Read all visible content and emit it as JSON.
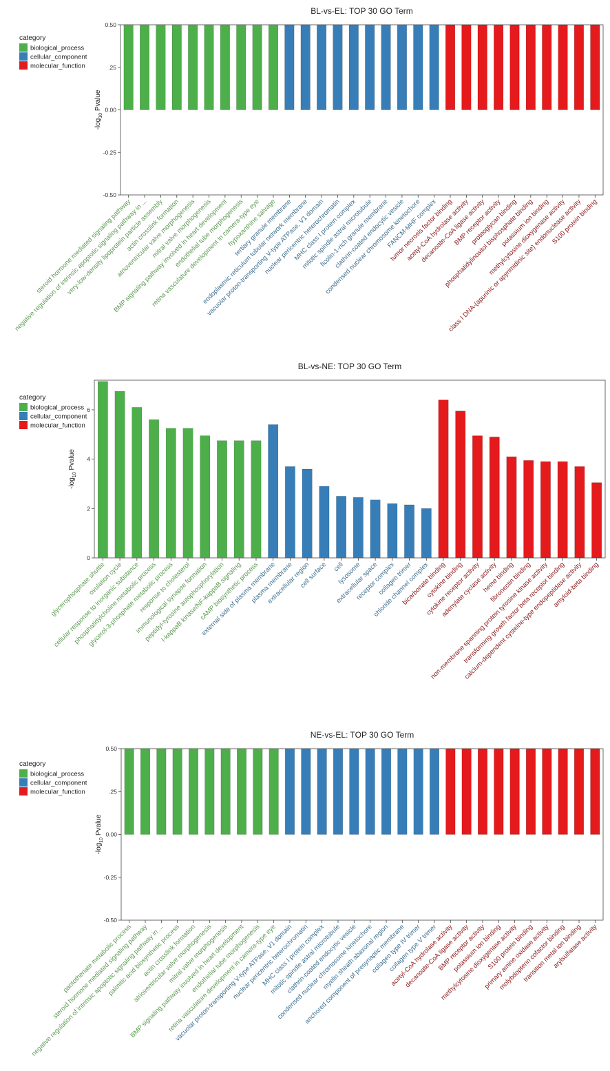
{
  "legend": {
    "title": "category",
    "items": [
      {
        "key": "bp",
        "label": "biological_process",
        "color": "#4DAF4A"
      },
      {
        "key": "cc",
        "label": "cellular_component",
        "color": "#377EB8"
      },
      {
        "key": "mf",
        "label": "molecular_function",
        "color": "#E41A1C"
      }
    ]
  },
  "label_colors": {
    "bp": "#5A9A50",
    "cc": "#3E6F8E",
    "mf": "#8B1A1A"
  },
  "ylabel": {
    "prefix": "-log",
    "sub": "10",
    "suffix": " Pvalue"
  },
  "chart_data": [
    {
      "type": "bar",
      "title": "BL-vs-EL: TOP 30 GO Term",
      "ylim": [
        -0.5,
        0.5
      ],
      "yticks": [
        -0.5,
        -0.25,
        0,
        0.25,
        0.5
      ],
      "ytick_labels": [
        "-0.50",
        "-0.25",
        "0.00",
        ".25",
        "0.50"
      ],
      "series": [
        {
          "name": "-log10 Pvalue",
          "values": [
            0.5,
            0.5,
            0.5,
            0.5,
            0.5,
            0.5,
            0.5,
            0.5,
            0.5,
            0.5,
            0.5,
            0.5,
            0.5,
            0.5,
            0.5,
            0.5,
            0.5,
            0.5,
            0.5,
            0.5,
            0.5,
            0.5,
            0.5,
            0.5,
            0.5,
            0.5,
            0.5,
            0.5,
            0.5,
            0.5
          ]
        }
      ],
      "category_groups": [
        "bp",
        "bp",
        "bp",
        "bp",
        "bp",
        "bp",
        "bp",
        "bp",
        "bp",
        "bp",
        "cc",
        "cc",
        "cc",
        "cc",
        "cc",
        "cc",
        "cc",
        "cc",
        "cc",
        "cc",
        "mf",
        "mf",
        "mf",
        "mf",
        "mf",
        "mf",
        "mf",
        "mf",
        "mf",
        "mf"
      ],
      "categories": [
        "steroid hormone mediated signaling pathway",
        "negative regulation of intrinsic apoptotic signaling pathway in ...",
        "very-low-density lipoprotein particle assembly",
        "actin crosslink formation",
        "atrioventricular valve morphogenesis",
        "mitral valve morphogenesis",
        "BMP signaling pathway involved in heart development",
        "endothelial tube morphogenesis",
        "retina vasculature development in camera-type eye",
        "hypoxanthine salvage",
        "tertiary granule membrane",
        "endoplasmic reticulum tubular network membrane",
        "vacuolar proton-transporting V-type ATPase, V1 domain",
        "nuclear pericentric heterochromatin",
        "MHC class I protein complex",
        "mitotic spindle astral microtubule",
        "ficolin-1-rich granule membrane",
        "clathrin-coated endocytic vesicle",
        "condensed nuclear chromosome kinetochore",
        "FANCM-MHF complex",
        "tumor necrosis factor binding",
        "acetyl-CoA hydrolase activity",
        "decanoate-CoA ligase activity",
        "BMP receptor activity",
        "proteoglycan binding",
        "phosphatidylinositol bisphosphate binding",
        "potassium ion binding",
        "methylcytosine dioxygenase activity",
        "class I DNA-(apurinic or apyrimidinic site) endonuclease activity",
        "S100 protein binding"
      ]
    },
    {
      "type": "bar",
      "title": "BL-vs-NE: TOP 30 GO Term",
      "ylim": [
        0,
        7.2
      ],
      "yticks": [
        0,
        2,
        4,
        6
      ],
      "ytick_labels": [
        "0",
        "2",
        "4",
        "6"
      ],
      "series": [
        {
          "name": "-log10 Pvalue",
          "values": [
            7.15,
            6.75,
            6.1,
            5.6,
            5.25,
            5.25,
            4.95,
            4.75,
            4.75,
            4.75,
            5.4,
            3.7,
            3.6,
            2.9,
            2.5,
            2.45,
            2.35,
            2.2,
            2.15,
            2.0,
            6.4,
            5.95,
            4.95,
            4.9,
            4.1,
            3.95,
            3.9,
            3.9,
            3.7,
            3.05
          ]
        }
      ],
      "category_groups": [
        "bp",
        "bp",
        "bp",
        "bp",
        "bp",
        "bp",
        "bp",
        "bp",
        "bp",
        "bp",
        "cc",
        "cc",
        "cc",
        "cc",
        "cc",
        "cc",
        "cc",
        "cc",
        "cc",
        "cc",
        "mf",
        "mf",
        "mf",
        "mf",
        "mf",
        "mf",
        "mf",
        "mf",
        "mf",
        "mf"
      ],
      "categories": [
        "glycerophosphate shuttle",
        "ovulation cycle",
        "cellular response to inorganic substance",
        "phosphatidylcholine metabolic process",
        "glycerol-3-phosphate metabolic process",
        "response to cholesterol",
        "immunological synapse formation",
        "peptidyl-tyrosine autophosphorylation",
        "I-kappaB kinase/NF-kappaB signaling",
        "cAMP biosynthetic process",
        "external side of plasma membrane",
        "plasma membrane",
        "extracellular region",
        "cell surface",
        "cell",
        "lysosome",
        "extracellular space",
        "receptor complex",
        "collagen trimer",
        "chloride channel complex",
        "bicarbonate binding",
        "cytokine binding",
        "cytokine receptor activity",
        "adenylate cyclase activity",
        "heme binding",
        "fibronectin binding",
        "non-membrane spanning protein tyrosine kinase activity",
        "transforming growth factor beta receptor binding",
        "calcium-dependent cysteine-type endopeptidase activity",
        "amyloid-beta binding"
      ]
    },
    {
      "type": "bar",
      "title": "NE-vs-EL: TOP 30 GO Term",
      "ylim": [
        -0.5,
        0.5
      ],
      "yticks": [
        -0.5,
        -0.25,
        0,
        0.25,
        0.5
      ],
      "ytick_labels": [
        "-0.50",
        "-0.25",
        "0.00",
        ".25",
        "0.50"
      ],
      "series": [
        {
          "name": "-log10 Pvalue",
          "values": [
            0.5,
            0.5,
            0.5,
            0.5,
            0.5,
            0.5,
            0.5,
            0.5,
            0.5,
            0.5,
            0.5,
            0.5,
            0.5,
            0.5,
            0.5,
            0.5,
            0.5,
            0.5,
            0.5,
            0.5,
            0.5,
            0.5,
            0.5,
            0.5,
            0.5,
            0.5,
            0.5,
            0.5,
            0.5,
            0.5
          ]
        }
      ],
      "category_groups": [
        "bp",
        "bp",
        "bp",
        "bp",
        "bp",
        "bp",
        "bp",
        "bp",
        "bp",
        "bp",
        "cc",
        "cc",
        "cc",
        "cc",
        "cc",
        "cc",
        "cc",
        "cc",
        "cc",
        "cc",
        "mf",
        "mf",
        "mf",
        "mf",
        "mf",
        "mf",
        "mf",
        "mf",
        "mf",
        "mf"
      ],
      "categories": [
        "pantothenate metabolic process",
        "steroid hormone mediated signaling pathway",
        "negative regulation of intrinsic apoptotic signaling pathway in ...",
        "palmitic acid biosynthetic process",
        "actin crosslink formation",
        "atrioventricular valve morphogenesis",
        "mitral valve morphogenesis",
        "BMP signaling pathway involved in heart development",
        "endothelial tube morphogenesis",
        "retina vasculature development in camera-type eye",
        "vacuolar proton-transporting V-type ATPase, V1 domain",
        "nuclear pericentric heterochromatin",
        "MHC class I protein complex",
        "mitotic spindle astral microtubule",
        "clathrin-coated endocytic vesicle",
        "condensed nuclear chromosome kinetochore",
        "myelin sheath abaxonal region",
        "anchored component of presynaptic membrane",
        "collagen type IV trimer",
        "collagen type V trimer",
        "acetyl-CoA hydrolase activity",
        "decanoate-CoA ligase activity",
        "BMP receptor activity",
        "potassium ion binding",
        "methylcytosine dioxygenase activity",
        "S100 protein binding",
        "primary amine oxidase activity",
        "molybdopterin cofactor binding",
        "transition metal ion binding",
        "arylsulfatase activity"
      ]
    }
  ]
}
